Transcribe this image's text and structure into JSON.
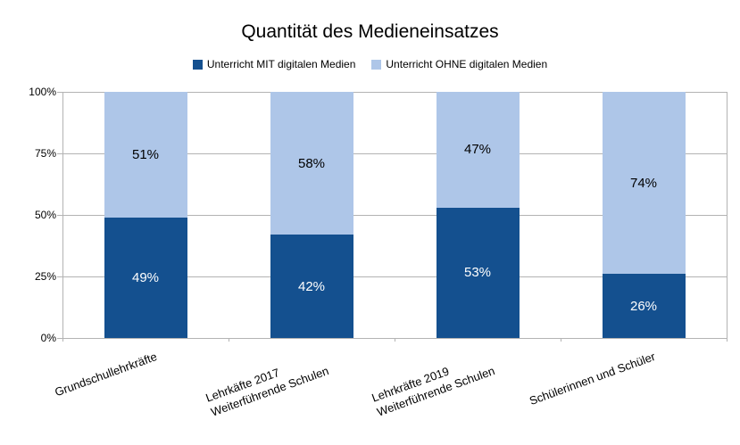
{
  "chart_data": {
    "type": "bar",
    "stacked": true,
    "title": "Quantität des Medieneinsatzes",
    "categories": [
      "Grundschullehrkräfte",
      "Lehrkäfte 2017\nWeiterführende Schulen",
      "Lehrkräfte 2019\nWeiterführende Schulen",
      "Schülerinnen und Schüler"
    ],
    "series": [
      {
        "name": "Unterricht MIT digitalen Medien",
        "color": "#14508f",
        "label_color": "#ffffff",
        "values": [
          49,
          42,
          53,
          26
        ]
      },
      {
        "name": "Unterricht OHNE digitalen Medien",
        "color": "#aec6e8",
        "label_color": "#000000",
        "values": [
          51,
          58,
          47,
          74
        ]
      }
    ],
    "value_suffix": "%",
    "y_ticks": [
      "0%",
      "25%",
      "50%",
      "75%",
      "100%"
    ],
    "ylim": [
      0,
      100
    ],
    "grid": true,
    "legend_position": "top",
    "colors": {
      "grid": "#b3b3b3",
      "axis": "#b3b3b3",
      "text": "#000000",
      "background": "#ffffff"
    }
  }
}
